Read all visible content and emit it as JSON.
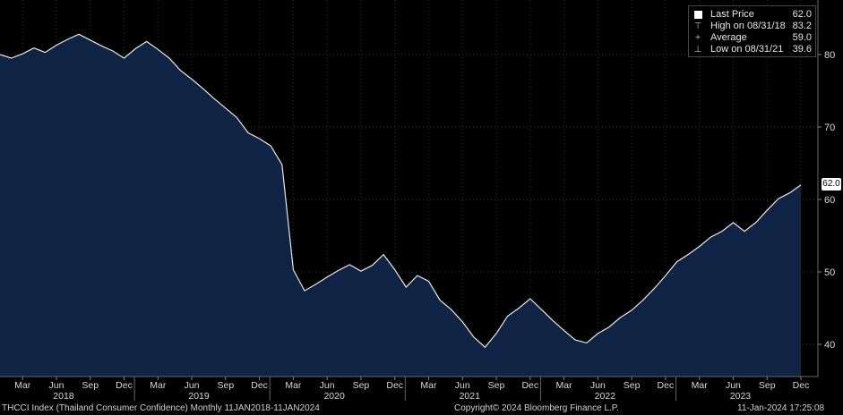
{
  "legend": {
    "items": [
      {
        "icon": "square-swatch-icon",
        "label": "Last Price",
        "value": "62.0"
      },
      {
        "icon": "high-marker-icon",
        "label": "High on 08/31/18",
        "value": "83.2"
      },
      {
        "icon": "average-marker-icon",
        "label": "Average",
        "value": "59.0"
      },
      {
        "icon": "low-marker-icon",
        "label": "Low on 08/31/21",
        "value": "39.6"
      }
    ]
  },
  "price_flag": "62.0",
  "footer": {
    "left": "THCCI Index (Thailand Consumer Confidence)  Monthly 11JAN2018-11JAN2024",
    "center": "Copyright© 2024 Bloomberg Finance L.P.",
    "right": "11-Jan-2024 17:25:08"
  },
  "colors": {
    "background": "#000000",
    "area_fill": "#0f2444",
    "line": "#e8e8e8",
    "axis_text": "#d8d8d8"
  },
  "chart_data": {
    "type": "area",
    "ylim": [
      34,
      90
    ],
    "yticks": [
      40,
      50,
      60,
      70,
      80
    ],
    "x_month_labels": [
      "Mar",
      "Jun",
      "Sep",
      "Dec",
      "Mar",
      "Jun",
      "Sep",
      "Dec",
      "Mar",
      "Jun",
      "Sep",
      "Dec",
      "Mar",
      "Jun",
      "Sep",
      "Dec",
      "Mar",
      "Jun",
      "Sep",
      "Dec",
      "Mar",
      "Jun",
      "Sep",
      "Dec"
    ],
    "x_year_labels": [
      "2018",
      "2019",
      "2020",
      "2021",
      "2022",
      "2023"
    ],
    "grid": true,
    "series": [
      {
        "values": [
          80.0,
          79.5,
          80.1,
          80.9,
          80.3,
          81.3,
          82.1,
          82.8,
          82.0,
          81.2,
          80.5,
          79.5,
          80.8,
          81.8,
          80.7,
          79.5,
          77.8,
          76.6,
          75.3,
          73.9,
          72.6,
          71.3,
          69.2,
          68.4,
          67.4,
          64.8,
          50.3,
          47.4,
          48.3,
          49.3,
          50.2,
          51.0,
          50.1,
          50.9,
          52.4,
          50.3,
          47.9,
          49.5,
          48.7,
          46.1,
          44.8,
          43.1,
          41.0,
          39.6,
          41.5,
          43.9,
          45.0,
          46.3,
          44.8,
          43.3,
          41.9,
          40.6,
          40.2,
          41.5,
          42.4,
          43.7,
          44.7,
          46.1,
          47.7,
          49.5,
          51.4,
          52.4,
          53.5,
          54.8,
          55.6,
          56.8,
          55.6,
          56.8,
          58.5,
          60.1,
          60.9,
          62.0
        ]
      }
    ]
  }
}
